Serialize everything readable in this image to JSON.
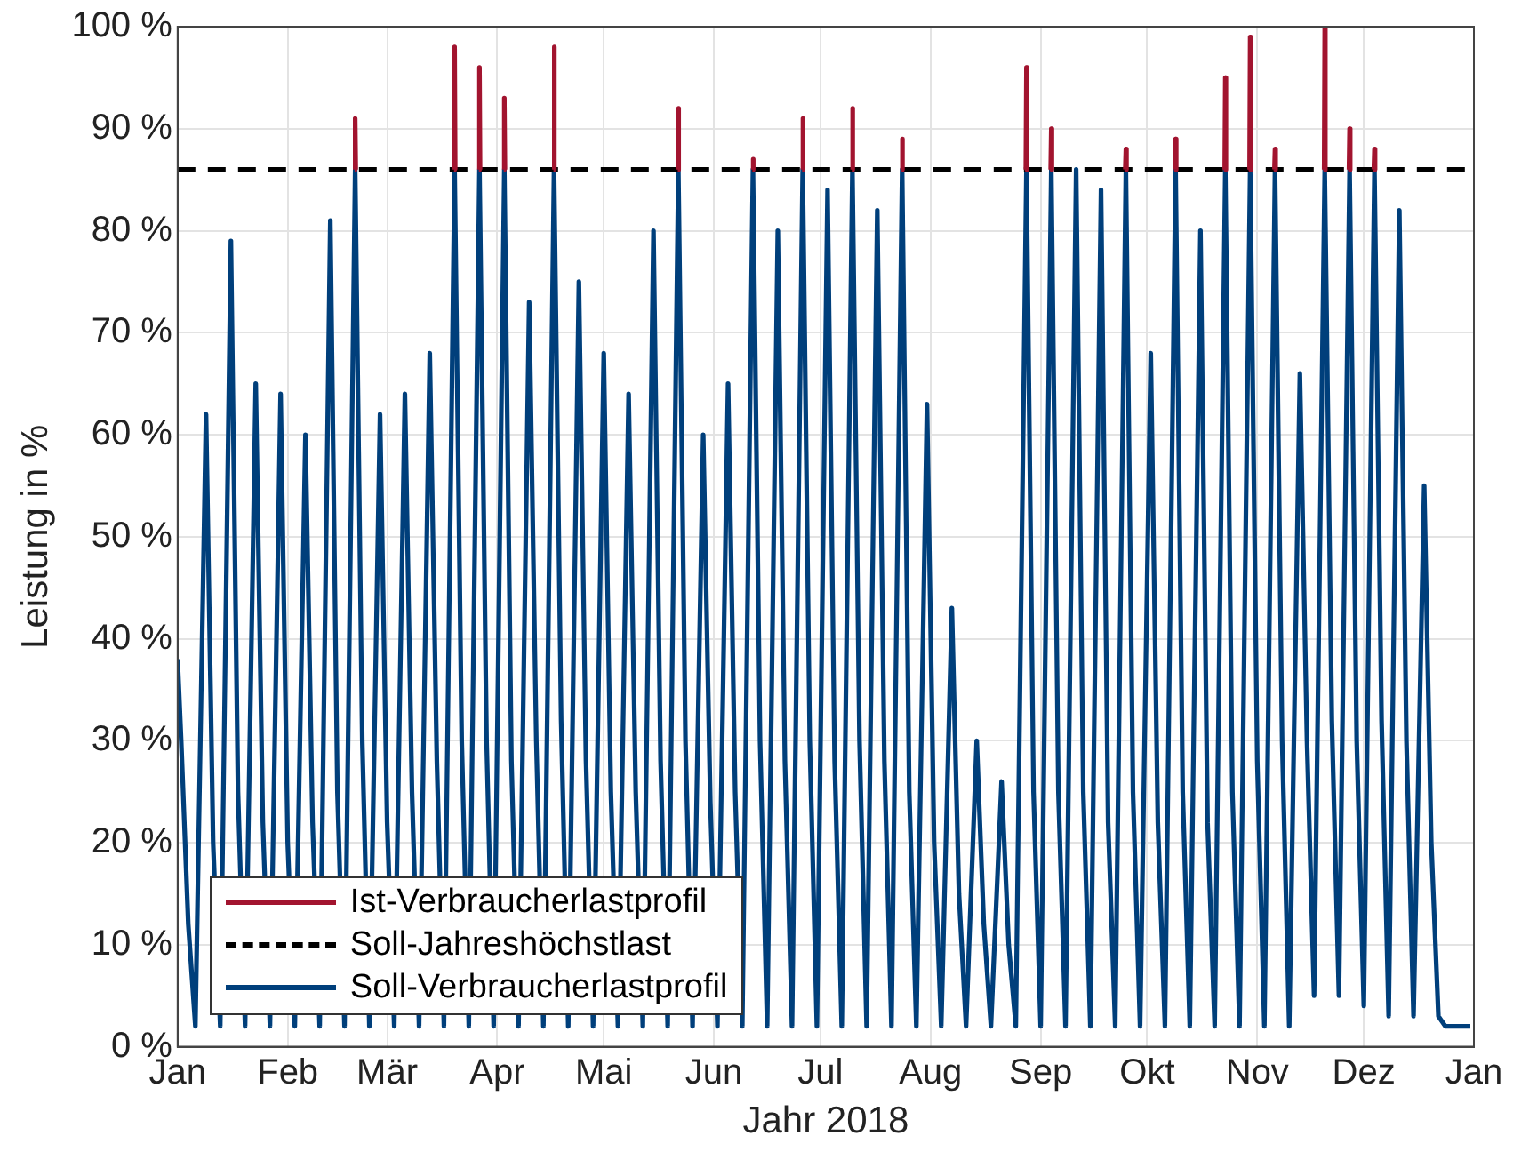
{
  "chart_data": {
    "type": "line",
    "xlabel": "Jahr 2018",
    "ylabel": "Leistung in %",
    "legend": "bottom left",
    "grid": true,
    "marker": "none",
    "line_style": "solid",
    "xlim": [
      "2018-01-01",
      "2019-01-01"
    ],
    "xticks": [
      {
        "value": "2018-01-01",
        "label": "Jan"
      },
      {
        "value": "2018-02-01",
        "label": "Feb"
      },
      {
        "value": "2018-03-01",
        "label": "Mär"
      },
      {
        "value": "2018-04-01",
        "label": "Apr"
      },
      {
        "value": "2018-05-01",
        "label": "Mai"
      },
      {
        "value": "2018-06-01",
        "label": "Jun"
      },
      {
        "value": "2018-07-01",
        "label": "Jul"
      },
      {
        "value": "2018-08-01",
        "label": "Aug"
      },
      {
        "value": "2018-09-01",
        "label": "Sep"
      },
      {
        "value": "2018-10-01",
        "label": "Okt"
      },
      {
        "value": "2018-11-01",
        "label": "Nov"
      },
      {
        "value": "2018-12-01",
        "label": "Dez"
      },
      {
        "value": "2019-01-01",
        "label": "Jan"
      }
    ],
    "ylim": [
      0,
      100
    ],
    "yticks": [
      {
        "value": 0,
        "label": "0 %"
      },
      {
        "value": 10,
        "label": "10 %"
      },
      {
        "value": 20,
        "label": "20 %"
      },
      {
        "value": 30,
        "label": "30 %"
      },
      {
        "value": 40,
        "label": "40 %"
      },
      {
        "value": 50,
        "label": "50 %"
      },
      {
        "value": 60,
        "label": "60 %"
      },
      {
        "value": 70,
        "label": "70 %"
      },
      {
        "value": 80,
        "label": "80 %"
      },
      {
        "value": 90,
        "label": "90 %"
      },
      {
        "value": 100,
        "label": "100 %"
      }
    ],
    "x": [
      "2018-01-01",
      "2018-01-02",
      "2018-01-04",
      "2018-01-06",
      "2018-01-09",
      "2018-01-11",
      "2018-01-13",
      "2018-01-16",
      "2018-01-18",
      "2018-01-20",
      "2018-01-23",
      "2018-01-25",
      "2018-01-27",
      "2018-01-30",
      "2018-02-01",
      "2018-02-03",
      "2018-02-06",
      "2018-02-08",
      "2018-02-10",
      "2018-02-13",
      "2018-02-15",
      "2018-02-17",
      "2018-02-20",
      "2018-02-22",
      "2018-02-24",
      "2018-02-27",
      "2018-03-01",
      "2018-03-03",
      "2018-03-06",
      "2018-03-08",
      "2018-03-10",
      "2018-03-13",
      "2018-03-15",
      "2018-03-17",
      "2018-03-20",
      "2018-03-22",
      "2018-03-24",
      "2018-03-27",
      "2018-03-29",
      "2018-03-31",
      "2018-04-03",
      "2018-04-05",
      "2018-04-07",
      "2018-04-10",
      "2018-04-12",
      "2018-04-14",
      "2018-04-17",
      "2018-04-19",
      "2018-04-21",
      "2018-04-24",
      "2018-04-26",
      "2018-04-28",
      "2018-05-01",
      "2018-05-03",
      "2018-05-05",
      "2018-05-08",
      "2018-05-10",
      "2018-05-12",
      "2018-05-15",
      "2018-05-17",
      "2018-05-19",
      "2018-05-22",
      "2018-05-24",
      "2018-05-26",
      "2018-05-29",
      "2018-05-31",
      "2018-06-02",
      "2018-06-05",
      "2018-06-07",
      "2018-06-09",
      "2018-06-12",
      "2018-06-14",
      "2018-06-16",
      "2018-06-19",
      "2018-06-21",
      "2018-06-23",
      "2018-06-26",
      "2018-06-28",
      "2018-06-30",
      "2018-07-03",
      "2018-07-05",
      "2018-07-07",
      "2018-07-10",
      "2018-07-12",
      "2018-07-14",
      "2018-07-17",
      "2018-07-19",
      "2018-07-21",
      "2018-07-24",
      "2018-07-26",
      "2018-07-28",
      "2018-07-31",
      "2018-08-02",
      "2018-08-04",
      "2018-08-07",
      "2018-08-09",
      "2018-08-11",
      "2018-08-14",
      "2018-08-16",
      "2018-08-18",
      "2018-08-21",
      "2018-08-23",
      "2018-08-25",
      "2018-08-28",
      "2018-08-30",
      "2018-09-01",
      "2018-09-04",
      "2018-09-06",
      "2018-09-08",
      "2018-09-11",
      "2018-09-13",
      "2018-09-15",
      "2018-09-18",
      "2018-09-20",
      "2018-09-22",
      "2018-09-25",
      "2018-09-27",
      "2018-09-29",
      "2018-10-02",
      "2018-10-04",
      "2018-10-06",
      "2018-10-09",
      "2018-10-11",
      "2018-10-13",
      "2018-10-16",
      "2018-10-18",
      "2018-10-20",
      "2018-10-23",
      "2018-10-25",
      "2018-10-27",
      "2018-10-30",
      "2018-11-01",
      "2018-11-03",
      "2018-11-06",
      "2018-11-08",
      "2018-11-10",
      "2018-11-13",
      "2018-11-15",
      "2018-11-17",
      "2018-11-20",
      "2018-11-22",
      "2018-11-24",
      "2018-11-27",
      "2018-11-29",
      "2018-12-01",
      "2018-12-04",
      "2018-12-06",
      "2018-12-08",
      "2018-12-11",
      "2018-12-13",
      "2018-12-15",
      "2018-12-18",
      "2018-12-20",
      "2018-12-22",
      "2018-12-24",
      "2018-12-31"
    ],
    "series": [
      {
        "name": "Ist-Verbraucherlastprofil",
        "color": "#a2142f",
        "x": [
          "2018-02-19T20:00",
          "2018-02-20",
          "2018-02-20T04:00",
          "2018-02-20T05:00",
          "2018-03-19T20:00",
          "2018-03-20",
          "2018-03-20T04:00",
          "2018-03-20T05:00",
          "2018-03-26T20:00",
          "2018-03-27",
          "2018-03-27T04:00",
          "2018-03-27T05:00",
          "2018-04-02T20:00",
          "2018-04-03",
          "2018-04-03T04:00",
          "2018-04-03T05:00",
          "2018-04-16T20:00",
          "2018-04-17",
          "2018-04-17T04:00",
          "2018-04-17T05:00",
          "2018-05-21T20:00",
          "2018-05-22",
          "2018-05-22T04:00",
          "2018-05-22T05:00",
          "2018-06-11T20:00",
          "2018-06-12",
          "2018-06-12T04:00",
          "2018-06-12T05:00",
          "2018-06-25T20:00",
          "2018-06-26",
          "2018-06-26T04:00",
          "2018-06-26T05:00",
          "2018-07-09T20:00",
          "2018-07-10",
          "2018-07-10T04:00",
          "2018-07-10T05:00",
          "2018-07-23T20:00",
          "2018-07-24",
          "2018-07-24T04:00",
          "2018-07-24T05:00",
          "2018-08-27T20:00",
          "2018-08-28",
          "2018-08-28T04:00",
          "2018-08-28T05:00",
          "2018-09-03T20:00",
          "2018-09-04",
          "2018-09-04T04:00",
          "2018-09-04T05:00",
          "2018-09-24T20:00",
          "2018-09-25",
          "2018-09-25T04:00",
          "2018-09-25T05:00",
          "2018-10-08T20:00",
          "2018-10-09",
          "2018-10-09T04:00",
          "2018-10-09T05:00",
          "2018-10-22T20:00",
          "2018-10-23",
          "2018-10-23T04:00",
          "2018-10-23T05:00",
          "2018-10-29T20:00",
          "2018-10-30",
          "2018-10-30T04:00",
          "2018-10-30T05:00",
          "2018-11-05T20:00",
          "2018-11-06",
          "2018-11-06T04:00",
          "2018-11-06T05:00",
          "2018-11-19T20:00",
          "2018-11-20",
          "2018-11-20T04:00",
          "2018-11-20T05:00",
          "2018-11-26T20:00",
          "2018-11-27",
          "2018-11-27T04:00",
          "2018-11-27T05:00",
          "2018-12-03T20:00",
          "2018-12-04",
          "2018-12-04T04:00"
        ],
        "values": [
          86,
          91,
          86,
          null,
          86,
          98,
          86,
          null,
          86,
          96,
          86,
          null,
          86,
          93,
          86,
          null,
          86,
          98,
          86,
          null,
          86,
          92,
          86,
          null,
          86,
          87,
          86,
          null,
          86,
          91,
          86,
          null,
          86,
          92,
          86,
          null,
          86,
          89,
          86,
          null,
          86,
          96,
          86,
          null,
          86,
          90,
          86,
          null,
          86,
          88,
          86,
          null,
          86,
          89,
          86,
          null,
          86,
          95,
          86,
          null,
          86,
          99,
          86,
          null,
          86,
          88,
          86,
          null,
          86,
          100,
          86,
          null,
          86,
          90,
          86,
          null,
          86,
          88,
          86
        ]
      },
      {
        "name": "Soll-Verbraucherlastprofil",
        "color": "#003f7b",
        "values": [
          38,
          30,
          12,
          2,
          62,
          20,
          2,
          79,
          25,
          2,
          65,
          22,
          2,
          64,
          20,
          2,
          60,
          22,
          2,
          81,
          25,
          2,
          86,
          30,
          2,
          62,
          22,
          2,
          64,
          25,
          2,
          68,
          28,
          2,
          86,
          30,
          2,
          86,
          30,
          2,
          86,
          28,
          2,
          73,
          30,
          2,
          86,
          32,
          2,
          75,
          28,
          2,
          68,
          25,
          2,
          64,
          25,
          2,
          80,
          28,
          2,
          86,
          30,
          2,
          60,
          24,
          2,
          65,
          25,
          2,
          86,
          30,
          2,
          80,
          28,
          2,
          86,
          30,
          2,
          84,
          28,
          2,
          86,
          30,
          2,
          82,
          28,
          2,
          86,
          25,
          2,
          63,
          20,
          2,
          43,
          15,
          2,
          30,
          12,
          2,
          26,
          10,
          2,
          86,
          25,
          2,
          86,
          25,
          2,
          86,
          25,
          2,
          84,
          22,
          2,
          86,
          25,
          2,
          68,
          22,
          2,
          86,
          25,
          2,
          80,
          22,
          2,
          86,
          25,
          2,
          86,
          28,
          2,
          86,
          30,
          2,
          66,
          30,
          5,
          86,
          32,
          5,
          86,
          30,
          4,
          86,
          32,
          3,
          82,
          30,
          3,
          55,
          20,
          3,
          2,
          2
        ]
      }
    ],
    "ref_lines": [
      {
        "axis": "y",
        "value": 86,
        "label": "Soll-Jahreshöchstlast",
        "color": "#000000",
        "line_style": "dashed"
      }
    ]
  }
}
